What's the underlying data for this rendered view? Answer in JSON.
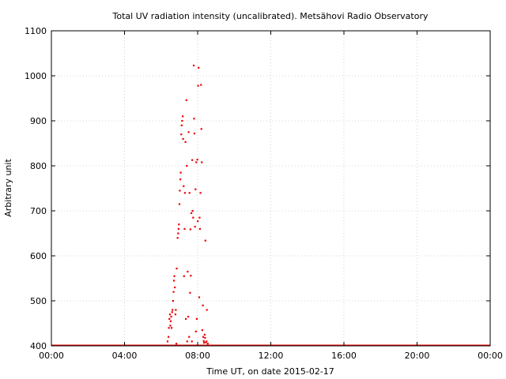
{
  "chart_data": {
    "type": "scatter",
    "title": "Total UV radiation intensity (uncalibrated). Metsähovi Radio Observatory",
    "xlabel": "Time UT, on date 2015-02-17",
    "ylabel": "Arbitrary unit",
    "xlim": [
      0,
      24
    ],
    "ylim": [
      400,
      1100
    ],
    "xticks": [
      0,
      4,
      8,
      12,
      16,
      20,
      24
    ],
    "xtick_labels": [
      "00:00",
      "04:00",
      "08:00",
      "12:00",
      "16:00",
      "20:00",
      "00:00"
    ],
    "yticks": [
      400,
      500,
      600,
      700,
      800,
      900,
      1000,
      1100
    ],
    "ytick_labels": [
      "400",
      "500",
      "600",
      "700",
      "800",
      "900",
      "1000",
      "1100"
    ],
    "grid": true,
    "color": "#ee0000",
    "baseline": {
      "value": 400,
      "x_from": 0,
      "x_to": 24
    },
    "series": [
      {
        "x": [
          6.35,
          6.4,
          6.42,
          6.45,
          6.48,
          6.5,
          6.52,
          6.55,
          6.57,
          6.6,
          6.62,
          6.65,
          6.68,
          6.7,
          6.72,
          6.75,
          6.78,
          6.8,
          6.83,
          6.85,
          6.9,
          6.93,
          6.95,
          6.97,
          7.0,
          7.02,
          7.05,
          7.07,
          7.1,
          7.12,
          7.15,
          7.18,
          7.2,
          7.23,
          7.25,
          7.28,
          7.3,
          7.33,
          7.35,
          7.38,
          7.4,
          7.42,
          7.45,
          7.48,
          7.5,
          7.53,
          7.55,
          7.58,
          7.6,
          7.62,
          7.65,
          7.68,
          7.7,
          7.72,
          7.75,
          7.78,
          7.8,
          7.82,
          7.85,
          7.88,
          7.9,
          7.92,
          7.95,
          7.98,
          8.0,
          8.02,
          8.05,
          8.08,
          8.1,
          8.12,
          8.15,
          8.18,
          8.2,
          8.22,
          8.25,
          8.28,
          8.3,
          8.33,
          8.35,
          8.38,
          8.4,
          8.42,
          8.45,
          8.48,
          8.5,
          8.55
        ],
        "y": [
          410,
          420,
          440,
          460,
          470,
          445,
          455,
          465,
          440,
          475,
          480,
          500,
          520,
          545,
          555,
          530,
          470,
          480,
          405,
          572,
          640,
          650,
          660,
          670,
          715,
          745,
          770,
          785,
          870,
          890,
          900,
          910,
          860,
          755,
          555,
          660,
          740,
          853,
          460,
          946,
          800,
          410,
          565,
          465,
          875,
          420,
          740,
          518,
          659,
          556,
          695,
          410,
          813,
          700,
          685,
          1023,
          905,
          872,
          665,
          748,
          432,
          808,
          460,
          814,
          677,
          978,
          1018,
          508,
          685,
          660,
          740,
          980,
          882,
          808,
          435,
          490,
          420,
          411,
          407,
          425,
          418,
          634,
          408,
          410,
          480,
          405
        ]
      }
    ]
  }
}
